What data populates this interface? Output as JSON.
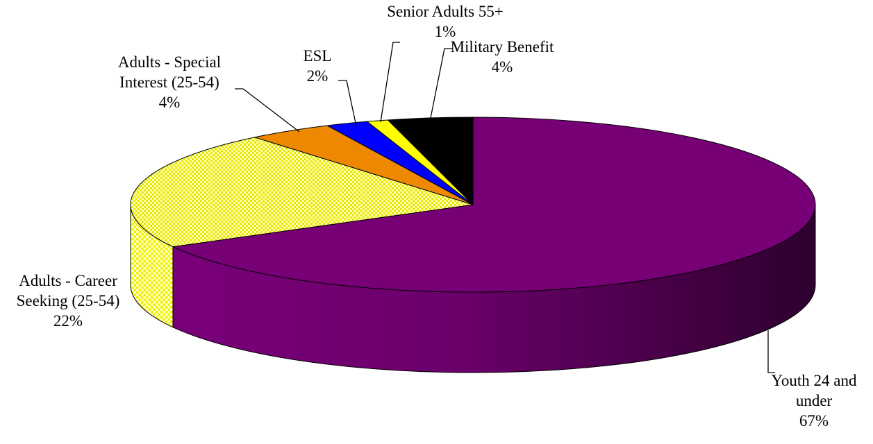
{
  "chart_data": {
    "type": "pie",
    "style": "3d-exploded-none",
    "title": "",
    "slices": [
      {
        "label_lines": [
          "Youth  24 and",
          "under"
        ],
        "percent_label": "67%",
        "value": 67,
        "color": "#770077",
        "pattern": "solid"
      },
      {
        "label_lines": [
          "Adults - Career",
          "Seeking (25-54)"
        ],
        "percent_label": "22%",
        "value": 22,
        "color": "#ffff66",
        "pattern": "checker"
      },
      {
        "label_lines": [
          "Adults - Special",
          "Interest (25-54)"
        ],
        "percent_label": "4%",
        "value": 4,
        "color": "#ee8800",
        "pattern": "solid"
      },
      {
        "label_lines": [
          "ESL"
        ],
        "percent_label": "2%",
        "value": 2,
        "color": "#0000ff",
        "pattern": "solid"
      },
      {
        "label_lines": [
          "Senior Adults 55+"
        ],
        "percent_label": "1%",
        "value": 1,
        "color": "#ffff00",
        "pattern": "solid"
      },
      {
        "label_lines": [
          "Military Benefit"
        ],
        "percent_label": "4%",
        "value": 4,
        "color": "#000000",
        "pattern": "solid"
      }
    ]
  }
}
